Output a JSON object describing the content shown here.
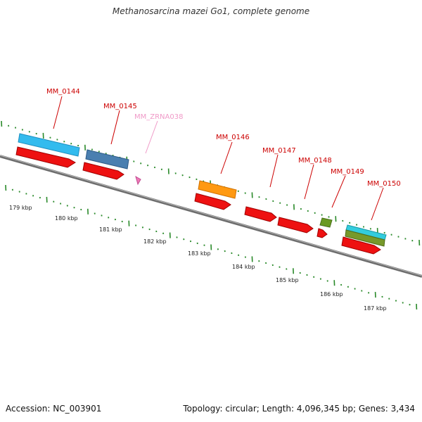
{
  "title": "Methanosarcina mazei Go1, complete genome",
  "footer": {
    "accession": "Accession: NC_003901",
    "topology": "Topology: circular; Length: 4,096,345 bp; Genes: 3,434"
  },
  "colors": {
    "cds": "#ee1111",
    "label": "#cc0000",
    "ncrna_label": "#f09ac8",
    "ncrna": "#f07ab8",
    "tick": "#2a8a2a",
    "backbone": "#8a8a8a",
    "blue_light": "#33bbee",
    "blue_steel": "#4477aa",
    "orange": "#ff9911",
    "olive": "#669922",
    "cyan": "#33ccdd"
  },
  "genes": [
    {
      "name": "MM_0144"
    },
    {
      "name": "MM_0145"
    },
    {
      "name": "MM_ZRNA038"
    },
    {
      "name": "MM_0146"
    },
    {
      "name": "MM_0147"
    },
    {
      "name": "MM_0148"
    },
    {
      "name": "MM_0149"
    },
    {
      "name": "MM_0150"
    }
  ],
  "kbp_labels": [
    "179 kbp",
    "180 kbp",
    "181 kbp",
    "182 kbp",
    "183 kbp",
    "184 kbp",
    "185 kbp",
    "186 kbp",
    "187 kbp"
  ]
}
